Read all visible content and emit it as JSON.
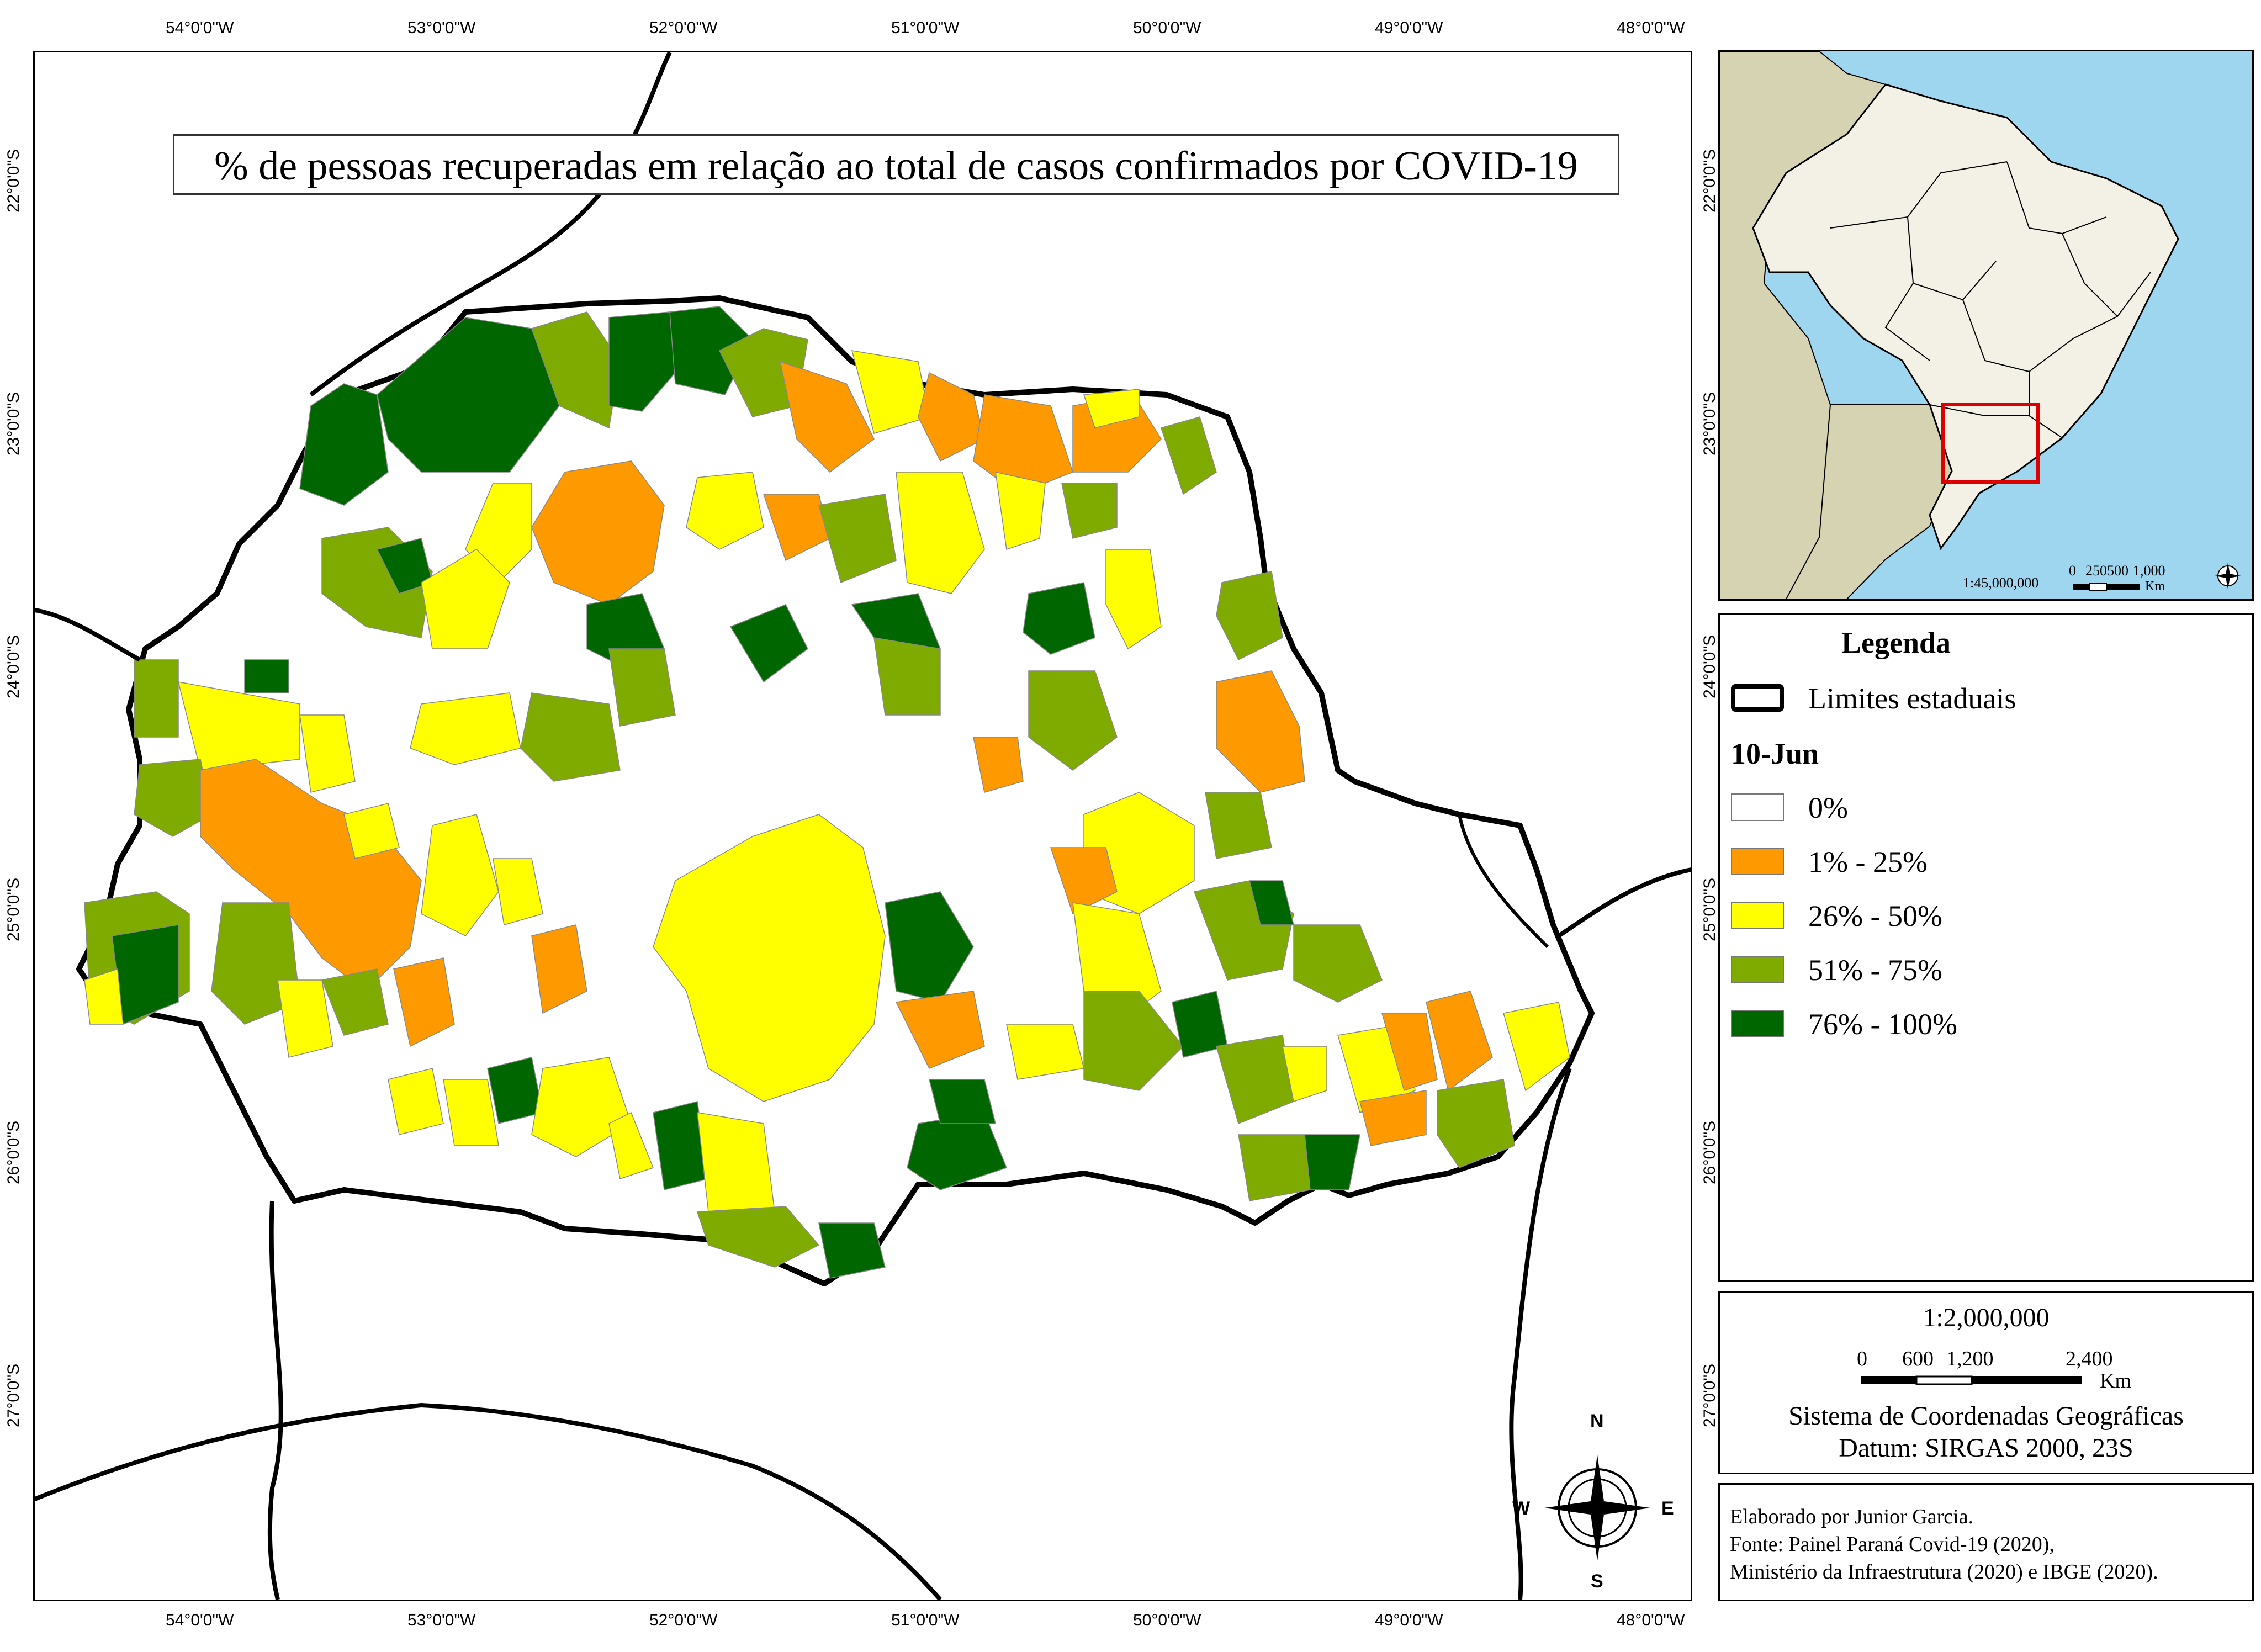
{
  "title": "% de pessoas recuperadas em relação ao total de casos confirmados por COVID-19",
  "longitude_labels": [
    "54°0'0\"W",
    "53°0'0\"W",
    "52°0'0\"W",
    "51°0'0\"W",
    "50°0'0\"W",
    "49°0'0\"W",
    "48°0'0\"W"
  ],
  "latitude_labels": [
    "22°0'0\"S",
    "23°0'0\"S",
    "24°0'0\"S",
    "25°0'0\"S",
    "26°0'0\"S",
    "27°0'0\"S"
  ],
  "legend": {
    "title": "Legenda",
    "boundary_label": "Limites estaduais",
    "date_label": "10-Jun",
    "classes": [
      {
        "label": "0%",
        "color": "#ffffff"
      },
      {
        "label": "1% - 25%",
        "color": "#ff9900"
      },
      {
        "label": "26% - 50%",
        "color": "#ffff00"
      },
      {
        "label": "51% - 75%",
        "color": "#7fab00"
      },
      {
        "label": "76% - 100%",
        "color": "#006600"
      }
    ]
  },
  "colors": {
    "ocean": "#9ed6f0",
    "land_other": "#d6d3b3",
    "brazil": "#f3f1e6",
    "focus_box": "#dd0000",
    "border": "#000000"
  },
  "inset": {
    "scale_text": "1:45,000,000",
    "scale_ticks": [
      "0",
      "250500",
      "1,000"
    ],
    "scale_unit": "Km"
  },
  "scale_box": {
    "scale_text": "1:2,000,000",
    "ticks": [
      "0",
      "600",
      "1,200",
      "2,400"
    ],
    "unit": "Km",
    "coord_system": "Sistema de Coordenadas Geográficas",
    "datum": "Datum: SIRGAS 2000, 23S"
  },
  "credits": {
    "line1": "Elaborado por Junior Garcia.",
    "line2": "Fonte: Painel Paraná Covid-19 (2020),",
    "line3": "Ministério da Infraestrutura (2020) e IBGE (2020)."
  },
  "north_arrow": {
    "n": "N",
    "s": "S",
    "e": "E",
    "w": "W"
  }
}
